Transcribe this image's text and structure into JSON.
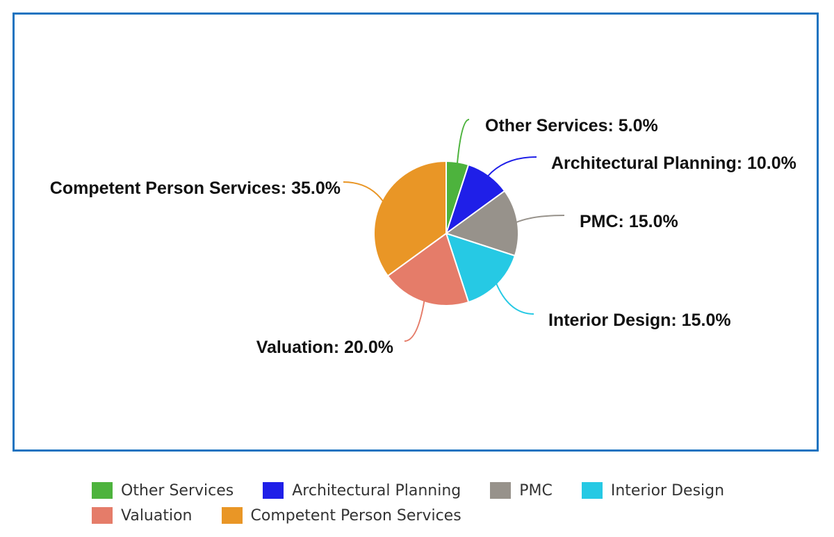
{
  "chart_data": {
    "type": "pie",
    "title": "",
    "categories": [
      "Other Services",
      "Architectural Planning",
      "PMC",
      "Interior Design",
      "Valuation",
      "Competent Person Services"
    ],
    "values": [
      5.0,
      10.0,
      15.0,
      15.0,
      20.0,
      35.0
    ],
    "labels": [
      "Other Services: 5.0%",
      "Architectural Planning: 10.0%",
      "PMC: 15.0%",
      "Interior Design: 15.0%",
      "Valuation: 20.0%",
      "Competent Person Services: 35.0%"
    ],
    "colors": [
      "#4db33d",
      "#1f1fe8",
      "#97928b",
      "#26c9e4",
      "#e57c69",
      "#e99626"
    ],
    "border_color": "#1a73c0",
    "legend_position": "bottom"
  }
}
